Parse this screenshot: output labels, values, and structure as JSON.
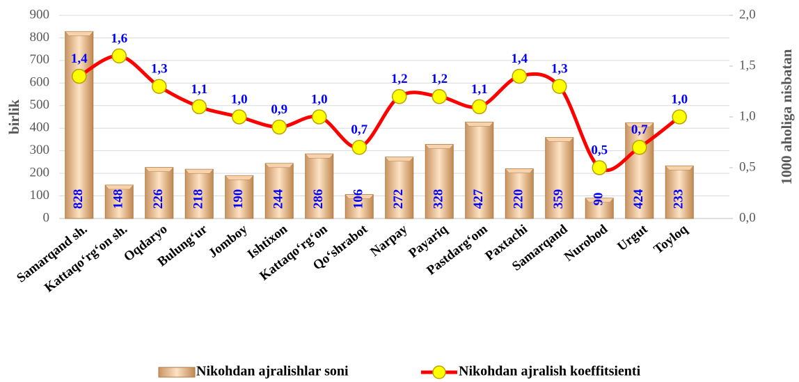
{
  "chart_data": {
    "type": "bar_line",
    "y_label": "birlik",
    "y2_label": "1000 aholiga nisbatan",
    "categories": [
      "Samarqand sh.",
      "Kattaqo‘rg‘on sh.",
      "Oqdaryo",
      "Bulung‘ur",
      "Jomboy",
      "Ishtixon",
      "Kattaqo‘rg‘on",
      "Qo‘shrabot",
      "Narpay",
      "Payariq",
      "Pastdarg‘om",
      "Paxtachi",
      "Samarqand",
      "Nurobod",
      "Urgut",
      "Toyloq"
    ],
    "series": [
      {
        "name": "Nikohdan ajralishlar soni",
        "type": "bar",
        "color": "#e8b98a",
        "values": [
          828,
          148,
          226,
          218,
          190,
          244,
          286,
          106,
          272,
          328,
          427,
          220,
          359,
          90,
          424,
          233
        ]
      },
      {
        "name": "Nikohdan ajralish koeffitsienti",
        "type": "line",
        "axis": "y2",
        "color": "#ff0000",
        "marker_color": "#ffff00",
        "values": [
          1.4,
          1.6,
          1.3,
          1.1,
          1.0,
          0.9,
          1.0,
          0.7,
          1.2,
          1.2,
          1.1,
          1.4,
          1.3,
          0.5,
          0.7,
          1.0
        ],
        "value_labels": [
          "1,4",
          "1,6",
          "1,3",
          "1,1",
          "1,0",
          "0,9",
          "1,0",
          "0,7",
          "1,2",
          "1,2",
          "1,1",
          "1,4",
          "1,3",
          "0,5",
          "0,7",
          "1,0"
        ]
      }
    ],
    "ylim": [
      0,
      900
    ],
    "yticks": [
      0,
      100,
      200,
      300,
      400,
      500,
      600,
      700,
      800,
      900
    ],
    "y2lim": [
      0,
      2
    ],
    "y2ticks": [
      {
        "value": 0,
        "label": "0,0"
      },
      {
        "value": 0.5,
        "label": "0,5"
      },
      {
        "value": 1,
        "label": "1,0"
      },
      {
        "value": 1.5,
        "label": "1,5"
      },
      {
        "value": 2,
        "label": "2,0"
      }
    ],
    "grid": true,
    "legend": "bottom"
  }
}
